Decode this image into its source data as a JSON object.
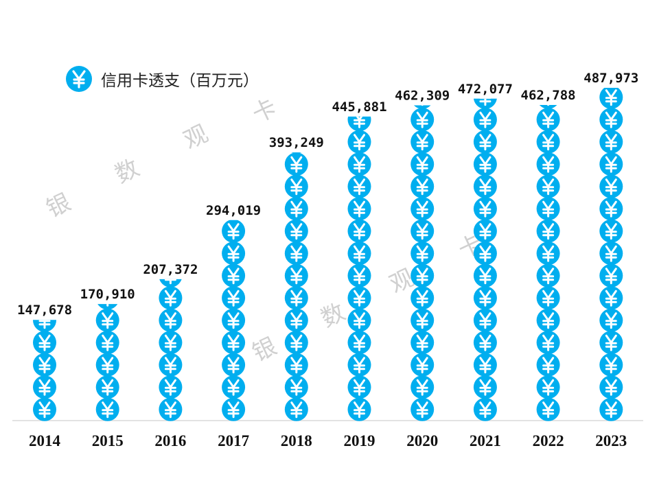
{
  "chart_data": {
    "type": "bar",
    "style": "pictograph",
    "icon": "yen-coin-icon",
    "legend": {
      "label": "信用卡透支（百万元）",
      "position": "top-left"
    },
    "categories": [
      "2014",
      "2015",
      "2016",
      "2017",
      "2018",
      "2019",
      "2020",
      "2021",
      "2022",
      "2023"
    ],
    "values": [
      147678,
      170910,
      207372,
      294019,
      393249,
      445881,
      462309,
      472077,
      462788,
      487973
    ],
    "data_labels": [
      "147,678",
      "170,910",
      "207,372",
      "294,019",
      "393,249",
      "445,881",
      "462,309",
      "472,077",
      "462,788",
      "487,973"
    ],
    "ylim": [
      0,
      487973
    ],
    "grid": false,
    "colors": {
      "icon": "#00AEEF",
      "icon_glyph": "#FFFFFF",
      "axis": "#D9D9D9",
      "watermark": "#D0D0D0"
    }
  },
  "watermark": [
    "银",
    "数",
    "观",
    "卡"
  ]
}
